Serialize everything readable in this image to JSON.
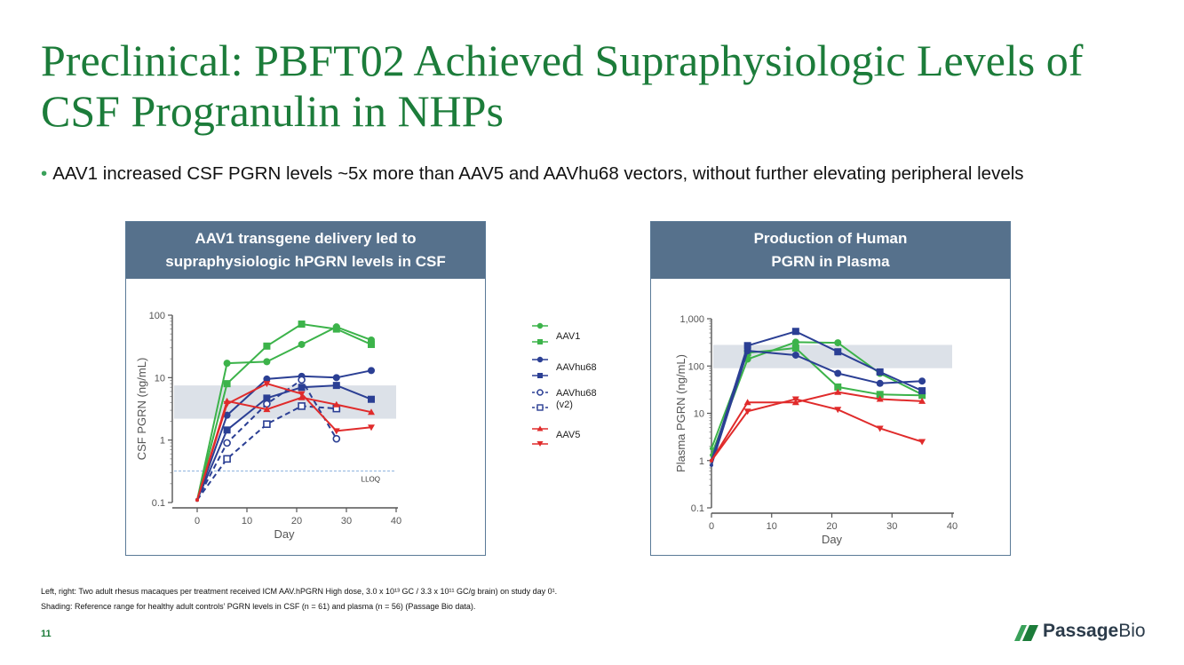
{
  "slide": {
    "title": "Preclinical: PBFT02 Achieved Supraphysiologic Levels of CSF Progranulin in NHPs",
    "bullet": "AAV1 increased CSF PGRN levels ~5x more than AAV5 and AAVhu68 vectors, without further elevating peripheral levels",
    "footnote1": "Left, right: Two adult rhesus macaques per treatment received ICM AAV.hPGRN High dose, 3.0 x 10¹³ GC / 3.3 x 10¹¹ GC/g brain) on study day 0¹.",
    "footnote2": "Shading: Reference range for healthy adult controls’ PGRN levels in CSF (n = 61) and plasma (n = 56) (Passage Bio data).",
    "page_number": "11",
    "logo_text_bold": "Passage",
    "logo_text_light": "Bio"
  },
  "legend": {
    "items": [
      {
        "label": "AAV1"
      },
      {
        "label": "AAVhu68"
      },
      {
        "label": "AAVhu68 (v2)"
      },
      {
        "label": "AAV5"
      }
    ]
  },
  "colors": {
    "AAV1": "#3cb34a",
    "AAVhu68": "#2b3f94",
    "AAV5": "#e02b2b",
    "shade": "#dce1e8",
    "title": "#1c7c3a",
    "header": "#56718c"
  },
  "chart_data": [
    {
      "type": "line",
      "title_line1": "AAV1 transgene delivery led to",
      "title_line2": "supraphysiologic hPGRN levels in CSF",
      "xlabel": "Day",
      "ylabel": "CSF PGRN (ng/mL)",
      "xlim": [
        -5,
        40
      ],
      "ylim": [
        0.1,
        100
      ],
      "yscale": "log",
      "xticks": [
        0,
        10,
        20,
        30,
        40
      ],
      "yticks": [
        0.1,
        1,
        10,
        100
      ],
      "ytick_labels": [
        "0.1",
        "1",
        "10",
        "100"
      ],
      "shade_range": [
        2.2,
        7.5
      ],
      "lloq": {
        "value": 0.32,
        "label": "LLOQ"
      },
      "series": [
        {
          "name": "AAV1",
          "marker": "circle",
          "style": "solid",
          "x": [
            0,
            6,
            14,
            21,
            28,
            35
          ],
          "y": [
            0.11,
            17,
            18,
            34,
            65,
            40
          ]
        },
        {
          "name": "AAV1",
          "marker": "square",
          "style": "solid",
          "x": [
            0,
            6,
            14,
            21,
            28,
            35
          ],
          "y": [
            0.11,
            8,
            32,
            72,
            60,
            34
          ]
        },
        {
          "name": "AAVhu68",
          "marker": "circle",
          "style": "solid",
          "x": [
            0,
            6,
            14,
            21,
            28,
            35
          ],
          "y": [
            0.11,
            2.5,
            9.5,
            10.5,
            10,
            13
          ]
        },
        {
          "name": "AAVhu68",
          "marker": "square",
          "style": "solid",
          "x": [
            0,
            6,
            14,
            21,
            28,
            35
          ],
          "y": [
            0.11,
            1.45,
            4.7,
            7,
            7.5,
            4.5
          ]
        },
        {
          "name": "AAVhu68 (v2)",
          "marker": "circle-open",
          "style": "dashed",
          "x": [
            0,
            6,
            14,
            21,
            28
          ],
          "y": [
            0.11,
            0.9,
            3.8,
            9.2,
            1.05
          ]
        },
        {
          "name": "AAVhu68 (v2)",
          "marker": "square-open",
          "style": "dashed",
          "x": [
            0,
            6,
            14,
            21,
            28
          ],
          "y": [
            0.11,
            0.5,
            1.8,
            3.5,
            3.2
          ]
        },
        {
          "name": "AAV5",
          "marker": "triangle-up",
          "style": "solid",
          "x": [
            0,
            6,
            14,
            21,
            28,
            35
          ],
          "y": [
            0.11,
            4.2,
            3.1,
            4.8,
            3.7,
            2.8
          ]
        },
        {
          "name": "AAV5",
          "marker": "triangle-down",
          "style": "solid",
          "x": [
            0,
            6,
            14,
            21,
            28,
            35
          ],
          "y": [
            0.11,
            3.8,
            8,
            5.5,
            1.4,
            1.6
          ]
        }
      ]
    },
    {
      "type": "line",
      "title_line1": "Production of Human",
      "title_line2": "PGRN in Plasma",
      "xlabel": "Day",
      "ylabel": "Plasma PGRN (ng/mL)",
      "xlim": [
        0,
        40
      ],
      "ylim": [
        0.1,
        1000
      ],
      "yscale": "log",
      "xticks": [
        0,
        10,
        20,
        30,
        40
      ],
      "yticks": [
        0.1,
        1,
        10,
        100,
        1000
      ],
      "ytick_labels": [
        "0.1",
        "1",
        "10",
        "100",
        "1,000"
      ],
      "shade_range": [
        90,
        280
      ],
      "series": [
        {
          "name": "AAV1",
          "marker": "circle",
          "style": "solid",
          "x": [
            0,
            6,
            14,
            21,
            28,
            35
          ],
          "y": [
            1.3,
            140,
            320,
            310,
            70,
            25
          ]
        },
        {
          "name": "AAV1",
          "marker": "square",
          "style": "solid",
          "x": [
            0,
            6,
            14,
            21,
            28,
            35
          ],
          "y": [
            1.8,
            190,
            240,
            36,
            25,
            24
          ]
        },
        {
          "name": "AAVhu68",
          "marker": "circle",
          "style": "solid",
          "x": [
            0,
            6,
            14,
            21,
            28,
            35
          ],
          "y": [
            0.8,
            210,
            170,
            70,
            43,
            48
          ]
        },
        {
          "name": "AAVhu68",
          "marker": "square",
          "style": "solid",
          "x": [
            0,
            6,
            14,
            21,
            28,
            35
          ],
          "y": [
            1.0,
            270,
            540,
            200,
            75,
            30
          ]
        },
        {
          "name": "AAV5",
          "marker": "triangle-up",
          "style": "solid",
          "x": [
            0,
            6,
            14,
            21,
            28,
            35
          ],
          "y": [
            1.0,
            17,
            17,
            28,
            20,
            18
          ]
        },
        {
          "name": "AAV5",
          "marker": "triangle-down",
          "style": "solid",
          "x": [
            0,
            6,
            14,
            21,
            28,
            35
          ],
          "y": [
            1.0,
            11,
            20,
            12,
            4.8,
            2.5
          ]
        }
      ]
    }
  ]
}
